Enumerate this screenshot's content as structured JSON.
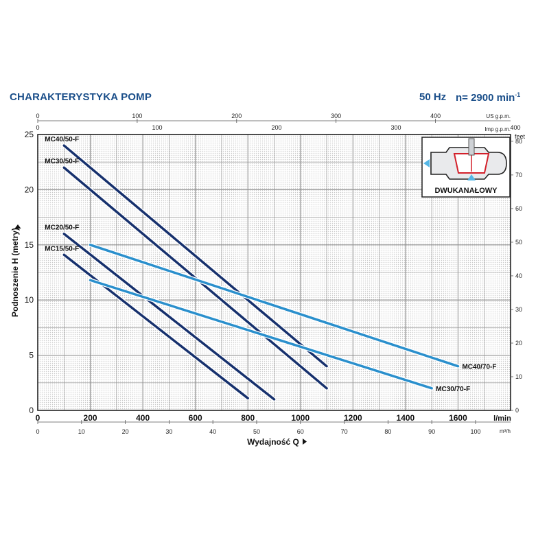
{
  "header": {
    "title": "CHARAKTERYSTYKA POMP",
    "frequency": "50 Hz",
    "speed": "n= 2900 min",
    "speed_sup": "-1"
  },
  "chart_data": {
    "type": "line",
    "xlabel": "Wydajność Q",
    "ylabel": "Podnoszenie H (metry)",
    "x_unit": "l/min",
    "xlim": [
      0,
      1800
    ],
    "ylim": [
      0,
      25
    ],
    "x_ticks": [
      0,
      200,
      400,
      600,
      800,
      1000,
      1200,
      1400,
      1600
    ],
    "y_ticks": [
      0,
      5,
      10,
      15,
      20,
      25
    ],
    "grid": true,
    "secondary_axes": {
      "us_gpm": {
        "unit": "US g.p.m.",
        "ticks": [
          0,
          100,
          200,
          300,
          400
        ],
        "per_lmin": 0.264172
      },
      "imp_gpm": {
        "unit": "Imp g.p.m.",
        "ticks": [
          0,
          100,
          200,
          300,
          400
        ],
        "per_lmin": 0.219969
      },
      "m3h": {
        "unit": "m³/h",
        "ticks": [
          0,
          10,
          20,
          30,
          40,
          50,
          60,
          70,
          80,
          90,
          100
        ],
        "per_lmin": 0.06
      },
      "feet": {
        "unit": "feet",
        "ticks": [
          0,
          10,
          20,
          30,
          40,
          50,
          60,
          70,
          80
        ],
        "per_m": 3.28084
      }
    },
    "series": [
      {
        "name": "MC40/50-F",
        "color": "#17316d",
        "points": [
          [
            100,
            24
          ],
          [
            1100,
            4
          ]
        ]
      },
      {
        "name": "MC30/50-F",
        "color": "#17316d",
        "points": [
          [
            100,
            22
          ],
          [
            1100,
            2
          ]
        ]
      },
      {
        "name": "MC20/50-F",
        "color": "#17316d",
        "points": [
          [
            100,
            16
          ],
          [
            900,
            1
          ]
        ]
      },
      {
        "name": "MC15/50-F",
        "color": "#17316d",
        "points": [
          [
            100,
            14.1
          ],
          [
            800,
            1.1
          ]
        ]
      },
      {
        "name": "MC40/70-F",
        "color": "#2a8fcc",
        "points": [
          [
            200,
            15
          ],
          [
            1600,
            4
          ]
        ]
      },
      {
        "name": "MC30/70-F",
        "color": "#2a8fcc",
        "points": [
          [
            200,
            11.8
          ],
          [
            1500,
            2
          ]
        ]
      }
    ],
    "inset": {
      "label": "DWUKANAŁOWY"
    }
  }
}
